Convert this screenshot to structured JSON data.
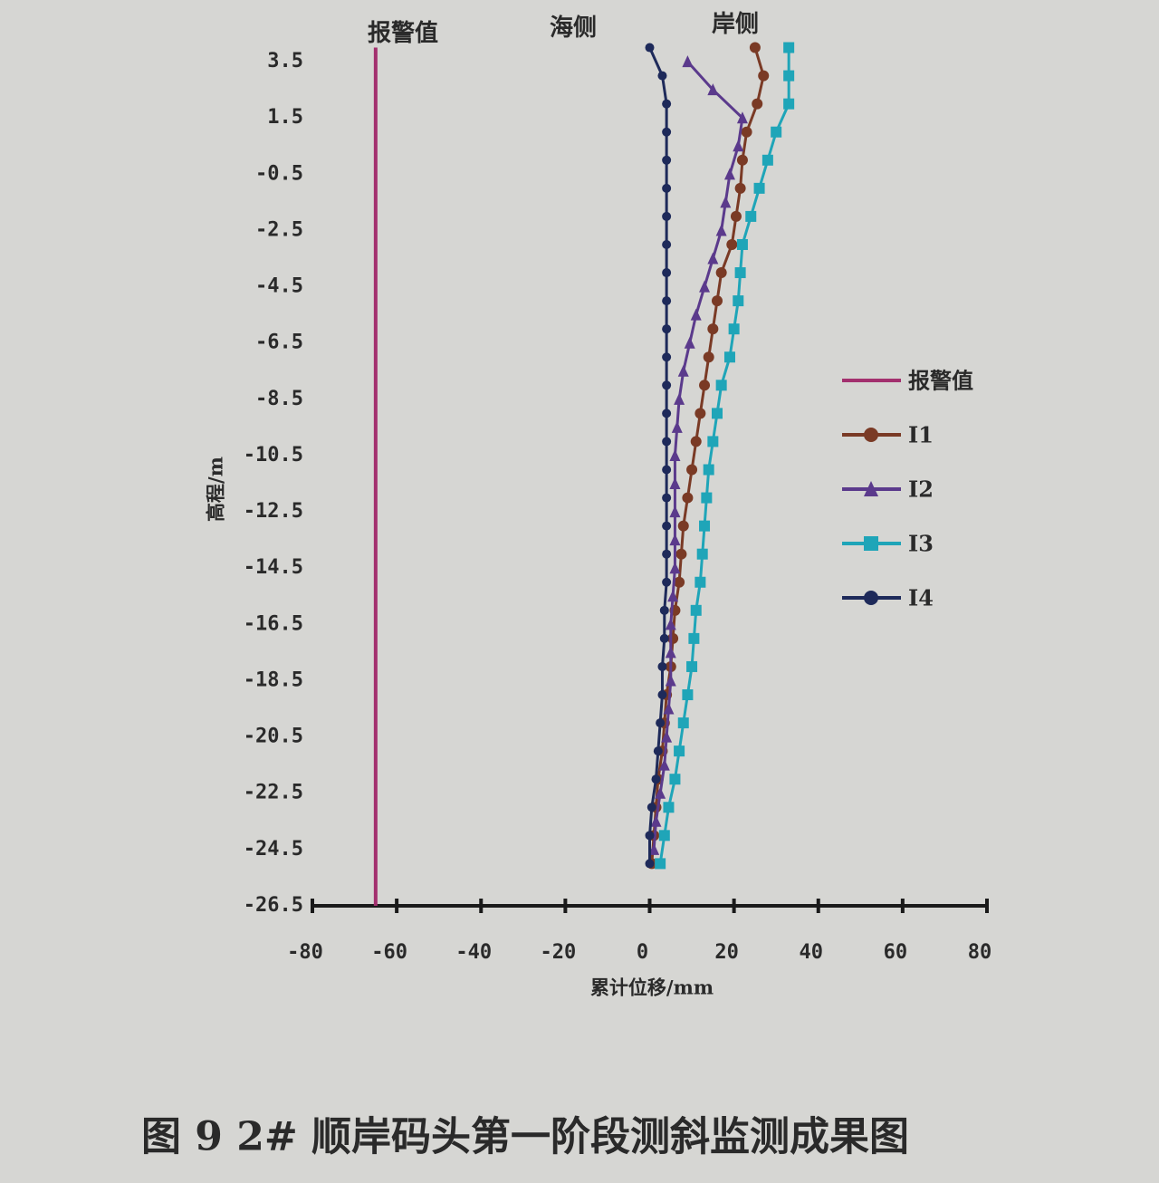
{
  "chart_data": {
    "type": "line",
    "title": "图 9 2# 顺岸码头第一阶段测斜监测成果图",
    "x_label": "累计位移/mm",
    "y_label": "高程/m",
    "annotations": [
      "报警值",
      "海侧",
      "岸侧"
    ],
    "xlim": [
      -80,
      80
    ],
    "xticks": [
      -80,
      -60,
      -40,
      -20,
      0,
      20,
      40,
      60,
      80
    ],
    "ylim": [
      -26.5,
      4.5
    ],
    "yticks": [
      3.5,
      1.5,
      -0.5,
      -2.5,
      -4.5,
      -6.5,
      -8.5,
      -10.5,
      -12.5,
      -14.5,
      -16.5,
      -18.5,
      -20.5,
      -22.5,
      -24.5,
      -26.5
    ],
    "legend": "right",
    "series": [
      {
        "name": "报警值",
        "color": "#a3306e",
        "marker": "none",
        "y": [
          4,
          -26.5
        ],
        "x": [
          -65,
          -65
        ]
      },
      {
        "name": "I1",
        "color": "#7a3a25",
        "marker": "circle",
        "y": [
          4,
          3,
          2,
          1,
          0,
          -1,
          -2,
          -3,
          -4,
          -5,
          -6,
          -7,
          -8,
          -9,
          -10,
          -11,
          -12,
          -13,
          -14,
          -15,
          -16,
          -17,
          -18,
          -19,
          -20,
          -21,
          -22,
          -23,
          -24,
          -25
        ],
        "x": [
          25,
          27,
          25.5,
          23,
          22,
          21.5,
          20.5,
          19.5,
          17,
          16,
          15,
          14,
          13,
          12,
          11,
          10,
          9,
          8,
          7.5,
          7,
          6,
          5.5,
          5,
          4,
          3.5,
          3,
          2,
          1.5,
          1,
          0.5
        ]
      },
      {
        "name": "I2",
        "color": "#5b3a8c",
        "marker": "triangle",
        "y": [
          3.5,
          2.5,
          1.5,
          0.5,
          -0.5,
          -1.5,
          -2.5,
          -3.5,
          -4.5,
          -5.5,
          -6.5,
          -7.5,
          -8.5,
          -9.5,
          -10.5,
          -11.5,
          -12.5,
          -13.5,
          -14.5,
          -15.5,
          -16.5,
          -17.5,
          -18.5,
          -19.5,
          -20.5,
          -21.5,
          -22.5,
          -23.5,
          -24.5
        ],
        "x": [
          9,
          15,
          22,
          21,
          19,
          18,
          17,
          15,
          13,
          11,
          9.5,
          8,
          7,
          6.5,
          6,
          6,
          6,
          6,
          6,
          5.5,
          5,
          5,
          5,
          4.5,
          4,
          3.5,
          2.5,
          1.5,
          1
        ]
      },
      {
        "name": "I3",
        "color": "#1fa5b8",
        "marker": "square",
        "y": [
          4,
          3,
          2,
          1,
          0,
          -1,
          -2,
          -3,
          -4,
          -5,
          -6,
          -7,
          -8,
          -9,
          -10,
          -11,
          -12,
          -13,
          -14,
          -15,
          -16,
          -17,
          -18,
          -19,
          -20,
          -21,
          -22,
          -23,
          -24,
          -25
        ],
        "x": [
          33,
          33,
          33,
          30,
          28,
          26,
          24,
          22,
          21.5,
          21,
          20,
          19,
          17,
          16,
          15,
          14,
          13.5,
          13,
          12.5,
          12,
          11,
          10.5,
          10,
          9,
          8,
          7,
          6,
          4.5,
          3.5,
          2.5
        ]
      },
      {
        "name": "I4",
        "color": "#1e2a5a",
        "marker": "circle",
        "y": [
          4,
          3,
          2,
          1,
          0,
          -1,
          -2,
          -3,
          -4,
          -5,
          -6,
          -7,
          -8,
          -9,
          -10,
          -11,
          -12,
          -13,
          -14,
          -15,
          -16,
          -17,
          -18,
          -19,
          -20,
          -21,
          -22,
          -23,
          -24,
          -25
        ],
        "x": [
          0,
          3,
          4,
          4,
          4,
          4,
          4,
          4,
          4,
          4,
          4,
          4,
          4,
          4,
          4,
          4,
          4,
          4,
          4,
          4,
          3.5,
          3.5,
          3,
          3,
          2.5,
          2,
          1.5,
          0.5,
          0,
          0
        ]
      }
    ]
  }
}
